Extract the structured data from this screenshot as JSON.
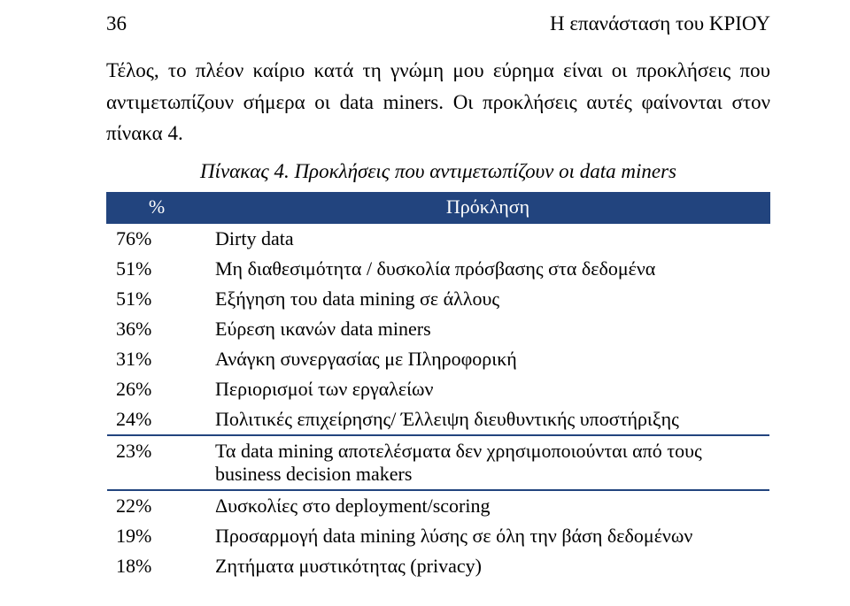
{
  "header": {
    "page_number": "36",
    "running_head": "Η επανάσταση του ΚΡΙΟΥ"
  },
  "intro": "Τέλος, το πλέον καίριο κατά τη γνώμη μου εύρημα είναι οι προκλήσεις που αντιμετωπίζουν σήμερα οι data miners. Οι προκλήσεις αυτές φαίνονται στον πίνακα 4.",
  "caption": "Πίνακας 4. Προκλήσεις που αντιμετωπίζουν οι data miners",
  "table": {
    "header": {
      "pct": "%",
      "desc": "Πρόκληση"
    },
    "rows": [
      {
        "pct": "76%",
        "desc": "Dirty data"
      },
      {
        "pct": "51%",
        "desc": "Μη διαθεσιμότητα / δυσκολία πρόσβασης στα δεδομένα"
      },
      {
        "pct": "51%",
        "desc": "Εξήγηση του data mining  σε άλλους"
      },
      {
        "pct": "36%",
        "desc": "Εύρεση ικανών data miners"
      },
      {
        "pct": "31%",
        "desc": "Ανάγκη συνεργασίας με Πληροφορική"
      },
      {
        "pct": "26%",
        "desc": "Περιορισμοί των εργαλείων"
      },
      {
        "pct": "24%",
        "desc": "Πολιτικές επιχείρησης/ Έλλειψη διευθυντικής υποστήριξης"
      },
      {
        "pct": "23%",
        "desc": "Τα data mining αποτελέσματα δεν χρησιμοποιούνται από τους business decision makers"
      },
      {
        "pct": "22%",
        "desc": "Δυσκολίες στο deployment/scoring"
      },
      {
        "pct": "19%",
        "desc": "Προσαρμογή data mining λύσης σε όλη την βάση δεδομένων"
      },
      {
        "pct": "18%",
        "desc": "Ζητήματα μυστικότητας (privacy)"
      }
    ],
    "sep_after_indices": [
      6,
      7
    ]
  },
  "style": {
    "font_family": "Times New Roman",
    "body_font_size_pt": 17,
    "header_bg": "#22447e",
    "header_fg": "#ffffff",
    "border_color": "#22447e",
    "page_bg": "#ffffff",
    "text_color": "#000000"
  }
}
